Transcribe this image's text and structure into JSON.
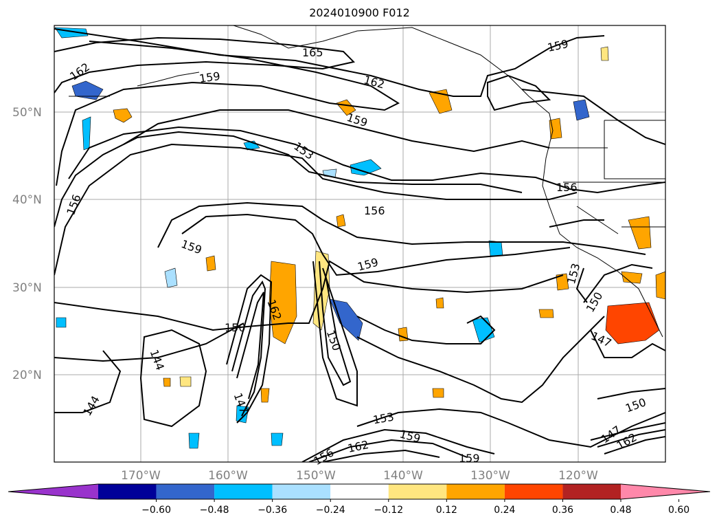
{
  "title": "2024010900 F012",
  "map": {
    "lat_labels": [
      "50°N",
      "40°N",
      "30°N",
      "20°N"
    ],
    "lon_labels": [
      "170°W",
      "160°W",
      "150°W",
      "140°W",
      "130°W",
      "120°W"
    ]
  },
  "contour_labels": [
    {
      "text": "165"
    },
    {
      "text": "162"
    },
    {
      "text": "159"
    },
    {
      "text": "162"
    },
    {
      "text": "159"
    },
    {
      "text": "159"
    },
    {
      "text": "153"
    },
    {
      "text": "156"
    },
    {
      "text": "156"
    },
    {
      "text": "156"
    },
    {
      "text": "159"
    },
    {
      "text": "159"
    },
    {
      "text": "153"
    },
    {
      "text": "150"
    },
    {
      "text": "150"
    },
    {
      "text": "162"
    },
    {
      "text": "150"
    },
    {
      "text": "144"
    },
    {
      "text": "144"
    },
    {
      "text": "147"
    },
    {
      "text": "147"
    },
    {
      "text": "150"
    },
    {
      "text": "153"
    },
    {
      "text": "159"
    },
    {
      "text": "162"
    },
    {
      "text": "156"
    },
    {
      "text": "159"
    },
    {
      "text": "147"
    },
    {
      "text": "162"
    }
  ],
  "colorbar": {
    "ticks": [
      "−0.60",
      "−0.48",
      "−0.36",
      "−0.24",
      "−0.12",
      "0.12",
      "0.24",
      "0.36",
      "0.48",
      "0.60"
    ],
    "colors": [
      "#9933cc",
      "#000099",
      "#3366cc",
      "#00bfff",
      "#aae0ff",
      "#ffffff",
      "#ffe680",
      "#ffa500",
      "#ff4500",
      "#b22222",
      "#ff88aa"
    ]
  }
}
